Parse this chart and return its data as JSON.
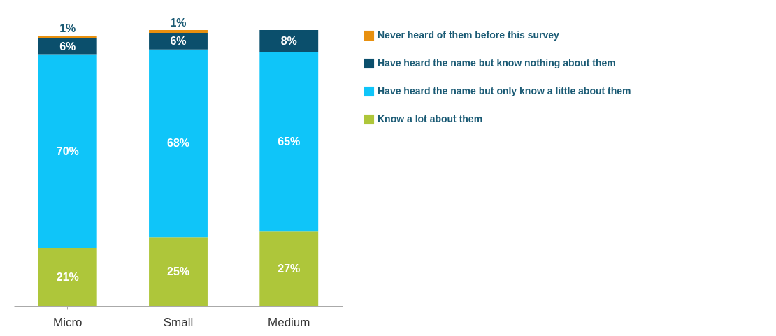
{
  "chart_data": {
    "type": "bar",
    "stacked": true,
    "categories": [
      "Micro",
      "Small",
      "Medium"
    ],
    "ylim": [
      0,
      100
    ],
    "tick_labels": "x",
    "grid": false,
    "legend": "right",
    "series": [
      {
        "name": "Know a lot about them",
        "color": "#aec63a",
        "values": [
          21,
          25,
          27
        ],
        "value_labels": [
          "21%",
          "25%",
          "27%"
        ]
      },
      {
        "name": "Have heard the name but only know a little about them",
        "color": "#0fc5f9",
        "values": [
          70,
          68,
          65
        ],
        "value_labels": [
          "70%",
          "68%",
          "65%"
        ]
      },
      {
        "name": "Have heard the name but know nothing about them",
        "color": "#0b4f6c",
        "values": [
          6,
          6,
          8
        ],
        "value_labels": [
          "6%",
          "6%",
          "8%"
        ]
      },
      {
        "name": "Never heard of them before this survey",
        "color": "#e8900f",
        "values": [
          1,
          1,
          null
        ],
        "value_labels": [
          "1%",
          "1%",
          null
        ]
      }
    ]
  }
}
